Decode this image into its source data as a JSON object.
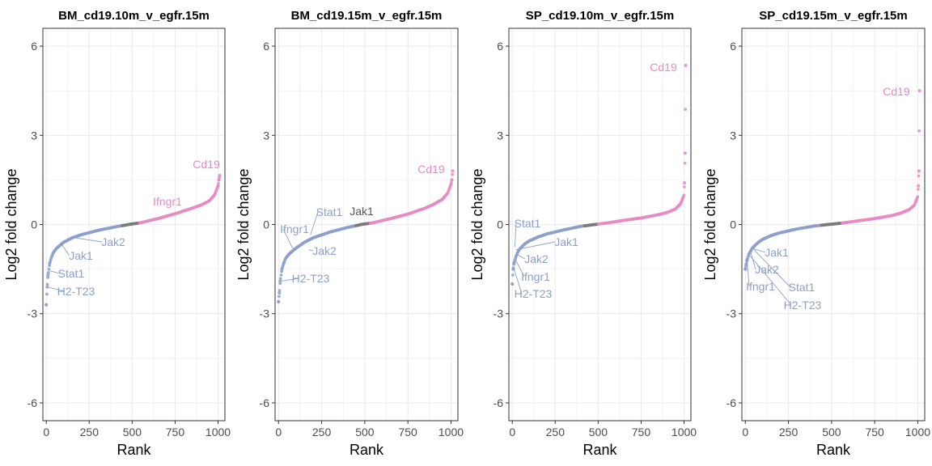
{
  "colors": {
    "down": "#8DA0CB",
    "neutral": "#7A7A7A",
    "up": "#E78AC3",
    "grid": "#EBEBEB",
    "frame": "#333333"
  },
  "chart_data": [
    {
      "type": "scatter",
      "title": "BM_cd19.10m_v_egfr.15m",
      "xlabel": "Rank",
      "ylabel": "Log2 fold change",
      "xlim": [
        -20,
        1040
      ],
      "ylim": [
        -6.6,
        6.6
      ],
      "xticks": [
        0,
        250,
        500,
        750,
        1000
      ],
      "yticks": [
        -6,
        -3,
        0,
        3,
        6
      ],
      "grid": true,
      "n": 1010,
      "profile": {
        "rank": [
          0,
          5,
          10,
          20,
          30,
          40,
          60,
          80,
          100,
          150,
          200,
          300,
          400,
          480,
          550,
          650,
          750,
          850,
          900,
          950,
          980,
          1000,
          1005,
          1010
        ],
        "lfc": [
          -2.7,
          -2.1,
          -1.7,
          -1.3,
          -1.1,
          -0.95,
          -0.8,
          -0.7,
          -0.6,
          -0.45,
          -0.35,
          -0.2,
          -0.08,
          0.0,
          0.06,
          0.2,
          0.36,
          0.55,
          0.65,
          0.8,
          1.0,
          1.3,
          1.5,
          1.65
        ]
      },
      "neutral_rank_range": [
        440,
        540
      ],
      "labeled_genes": [
        {
          "gene": "Cd19",
          "rank": 1008,
          "lfc": 1.65,
          "group": "up"
        },
        {
          "gene": "Ifngr1",
          "rank": 700,
          "lfc": 0.28,
          "group": "up"
        },
        {
          "gene": "Jak2",
          "rank": 170,
          "lfc": -0.45,
          "group": "down"
        },
        {
          "gene": "Jak1",
          "rank": 90,
          "lfc": -0.68,
          "group": "down"
        },
        {
          "gene": "Stat1",
          "rank": 15,
          "lfc": -1.55,
          "group": "down"
        },
        {
          "gene": "H2-T23",
          "rank": 5,
          "lfc": -2.1,
          "group": "down"
        }
      ]
    },
    {
      "type": "scatter",
      "title": "BM_cd19.15m_v_egfr.15m",
      "xlabel": "Rank",
      "ylabel": "Log2 fold change",
      "xlim": [
        -20,
        1040
      ],
      "ylim": [
        -6.6,
        6.6
      ],
      "xticks": [
        0,
        250,
        500,
        750,
        1000
      ],
      "yticks": [
        -6,
        -3,
        0,
        3,
        6
      ],
      "grid": true,
      "n": 1010,
      "profile": {
        "rank": [
          0,
          5,
          10,
          20,
          30,
          40,
          60,
          80,
          100,
          150,
          200,
          300,
          400,
          480,
          550,
          650,
          750,
          850,
          900,
          950,
          980,
          1000,
          1005,
          1010
        ],
        "lfc": [
          -2.6,
          -2.3,
          -1.9,
          -1.5,
          -1.3,
          -1.15,
          -1.0,
          -0.9,
          -0.8,
          -0.6,
          -0.45,
          -0.25,
          -0.1,
          0.0,
          0.06,
          0.2,
          0.35,
          0.55,
          0.68,
          0.85,
          1.05,
          1.35,
          1.5,
          1.8
        ]
      },
      "neutral_rank_range": [
        450,
        530
      ],
      "labeled_genes": [
        {
          "gene": "Cd19",
          "rank": 1008,
          "lfc": 1.8,
          "group": "up"
        },
        {
          "gene": "Jak1",
          "rank": 500,
          "lfc": 0.15,
          "group": "neutral"
        },
        {
          "gene": "Stat1",
          "rank": 185,
          "lfc": -0.35,
          "group": "down"
        },
        {
          "gene": "Ifngr1",
          "rank": 90,
          "lfc": -0.9,
          "group": "down"
        },
        {
          "gene": "Jak2",
          "rank": 175,
          "lfc": -0.85,
          "group": "down"
        },
        {
          "gene": "H2-T23",
          "rank": 20,
          "lfc": -1.9,
          "group": "down"
        }
      ]
    },
    {
      "type": "scatter",
      "title": "SP_cd19.10m_v_egfr.15m",
      "xlabel": "Rank",
      "ylabel": "Log2 fold change",
      "xlim": [
        -20,
        1040
      ],
      "ylim": [
        -6.6,
        6.6
      ],
      "xticks": [
        0,
        250,
        500,
        750,
        1000
      ],
      "yticks": [
        -6,
        -3,
        0,
        3,
        6
      ],
      "grid": true,
      "n": 1010,
      "profile": {
        "rank": [
          0,
          5,
          10,
          20,
          30,
          40,
          60,
          80,
          100,
          150,
          200,
          300,
          400,
          480,
          550,
          650,
          750,
          850,
          900,
          950,
          980,
          1000,
          1003,
          1006,
          1010
        ],
        "lfc": [
          -2.0,
          -1.5,
          -1.3,
          -1.1,
          -0.95,
          -0.85,
          -0.72,
          -0.62,
          -0.55,
          -0.42,
          -0.32,
          -0.18,
          -0.06,
          0.0,
          0.05,
          0.14,
          0.22,
          0.33,
          0.4,
          0.52,
          0.7,
          1.0,
          1.4,
          2.4,
          5.35
        ]
      },
      "neutral_rank_range": [
        420,
        500
      ],
      "labeled_genes": [
        {
          "gene": "Cd19",
          "rank": 1010,
          "lfc": 5.35,
          "group": "up"
        },
        {
          "gene": "Stat1",
          "rank": 15,
          "lfc": -0.75,
          "group": "down"
        },
        {
          "gene": "Jak1",
          "rank": 20,
          "lfc": -0.85,
          "group": "down"
        },
        {
          "gene": "Jak2",
          "rank": 25,
          "lfc": -1.0,
          "group": "down"
        },
        {
          "gene": "Ifngr1",
          "rank": 20,
          "lfc": -1.2,
          "group": "down"
        },
        {
          "gene": "H2-T23",
          "rank": 10,
          "lfc": -1.5,
          "group": "down"
        }
      ]
    },
    {
      "type": "scatter",
      "title": "SP_cd19.15m_v_egfr.15m",
      "xlabel": "Rank",
      "ylabel": "Log2 fold change",
      "xlim": [
        -20,
        1040
      ],
      "ylim": [
        -6.6,
        6.6
      ],
      "xticks": [
        0,
        250,
        500,
        750,
        1000
      ],
      "yticks": [
        -6,
        -3,
        0,
        3,
        6
      ],
      "grid": true,
      "n": 1010,
      "profile": {
        "rank": [
          0,
          5,
          10,
          20,
          30,
          40,
          60,
          80,
          100,
          150,
          200,
          300,
          400,
          480,
          550,
          650,
          750,
          850,
          900,
          950,
          980,
          1000,
          1003,
          1006,
          1010
        ],
        "lfc": [
          -1.5,
          -1.35,
          -1.2,
          -1.0,
          -0.9,
          -0.8,
          -0.68,
          -0.58,
          -0.5,
          -0.37,
          -0.28,
          -0.15,
          -0.05,
          0.0,
          0.04,
          0.12,
          0.2,
          0.3,
          0.38,
          0.5,
          0.65,
          0.95,
          1.3,
          1.8,
          4.5
        ]
      },
      "neutral_rank_range": [
        440,
        560
      ],
      "labeled_genes": [
        {
          "gene": "Cd19",
          "rank": 1010,
          "lfc": 4.5,
          "group": "up"
        },
        {
          "gene": "Jak1",
          "rank": 40,
          "lfc": -0.8,
          "group": "down"
        },
        {
          "gene": "Jak2",
          "rank": 30,
          "lfc": -0.9,
          "group": "down"
        },
        {
          "gene": "Ifngr1",
          "rank": 10,
          "lfc": -1.2,
          "group": "down"
        },
        {
          "gene": "Stat1",
          "rank": 50,
          "lfc": -0.85,
          "group": "down"
        },
        {
          "gene": "H2-T23",
          "rank": 20,
          "lfc": -1.0,
          "group": "down"
        }
      ]
    }
  ]
}
